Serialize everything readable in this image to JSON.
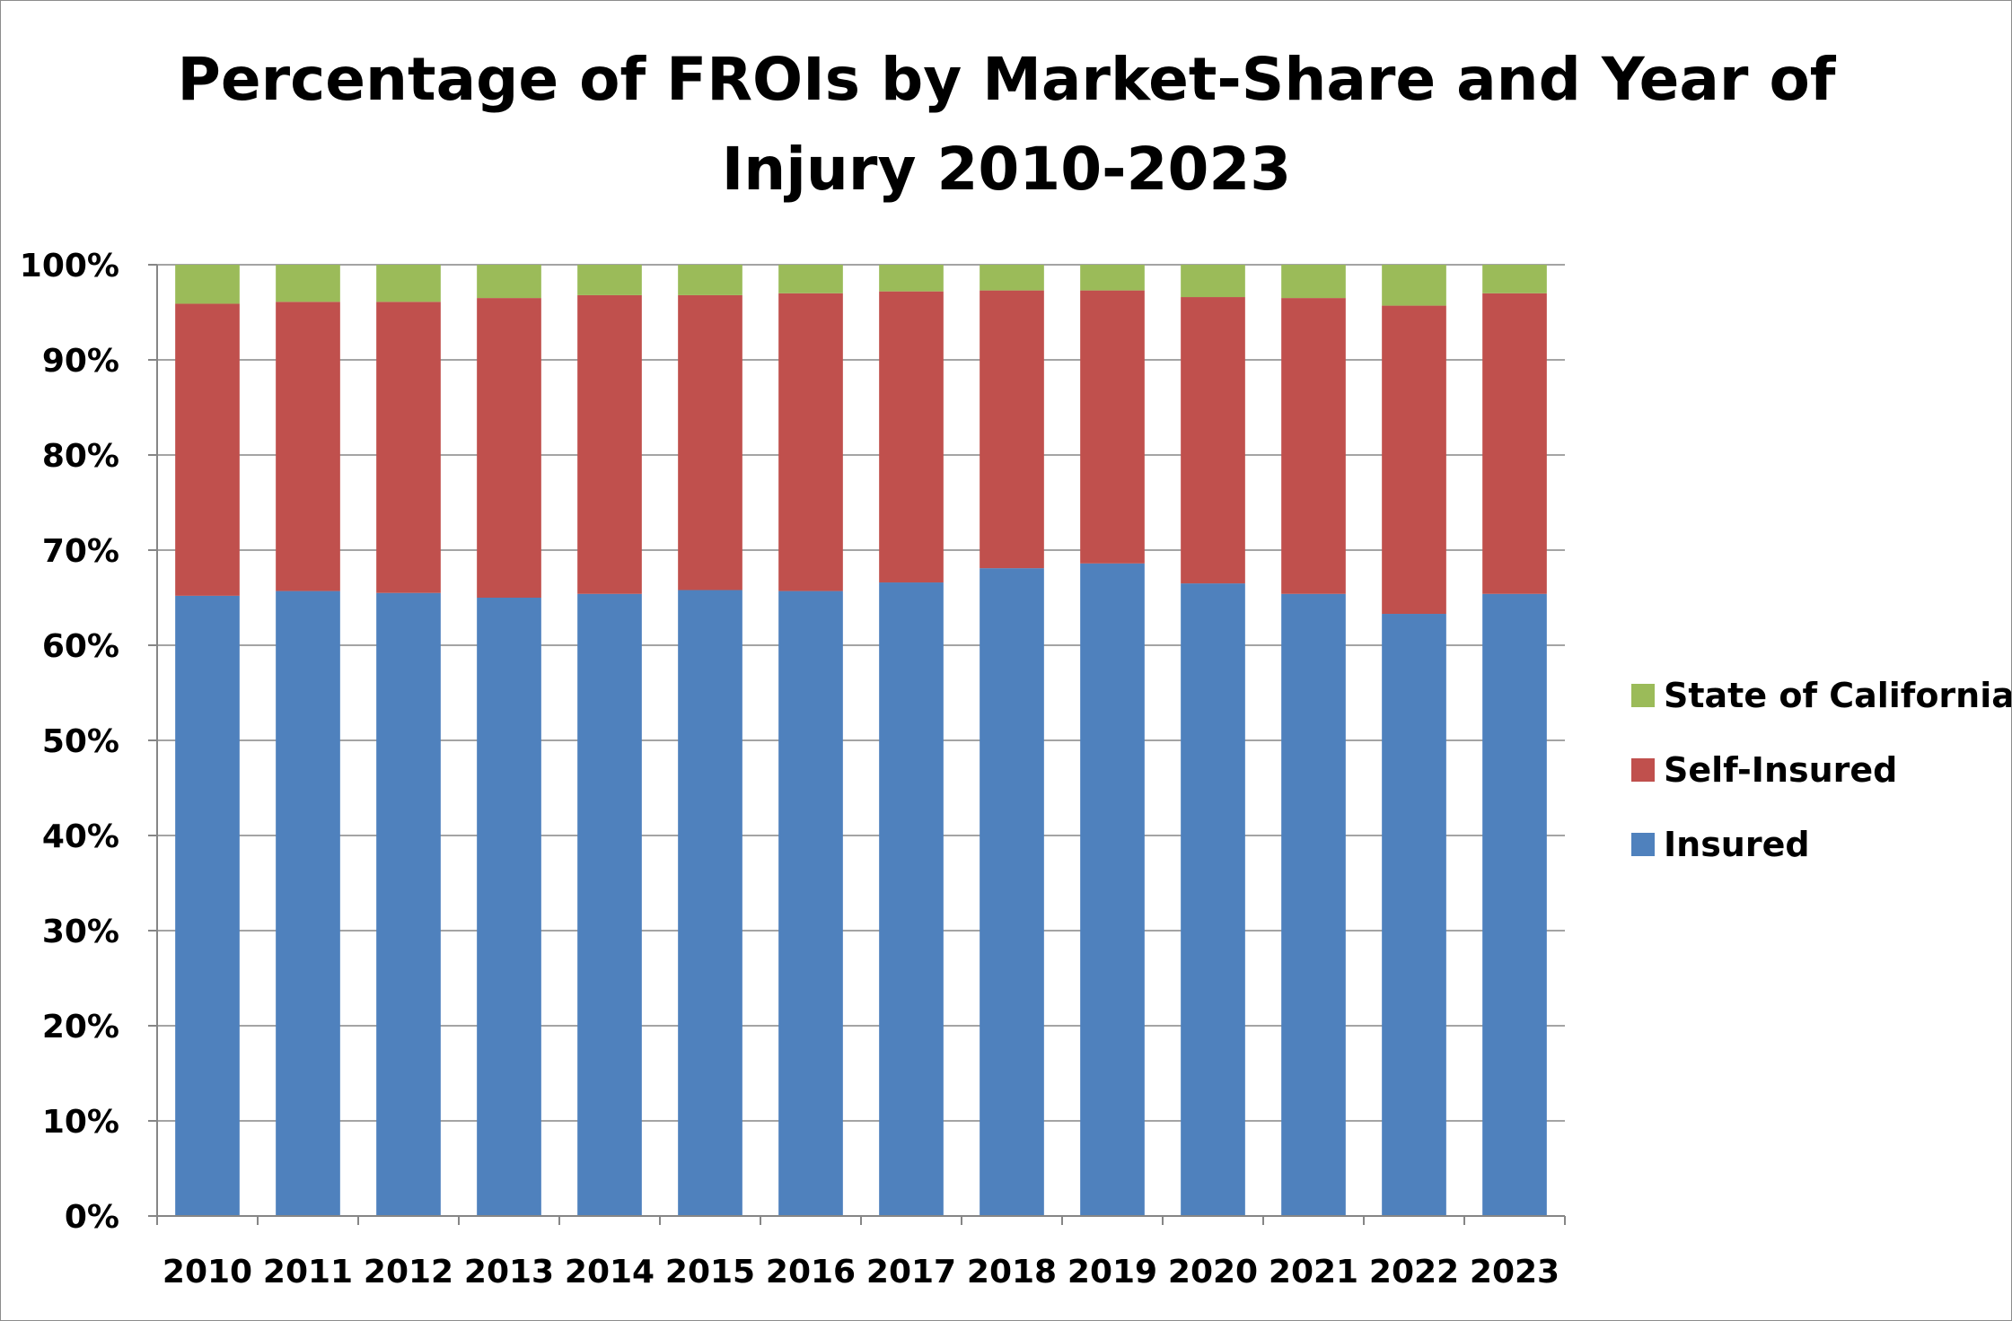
{
  "chart_data": {
    "type": "bar",
    "stacked": true,
    "title_lines": [
      "Percentage of FROIs by Market-Share and Year of",
      "Injury 2010-2023"
    ],
    "xlabel": "",
    "ylabel": "",
    "categories": [
      "2010",
      "2011",
      "2012",
      "2013",
      "2014",
      "2015",
      "2016",
      "2017",
      "2018",
      "2019",
      "2020",
      "2021",
      "2022",
      "2023"
    ],
    "ylim": [
      0,
      100
    ],
    "yticks": [
      0,
      10,
      20,
      30,
      40,
      50,
      60,
      70,
      80,
      90,
      100
    ],
    "ytick_labels": [
      "0%",
      "10%",
      "20%",
      "30%",
      "40%",
      "50%",
      "60%",
      "70%",
      "80%",
      "90%",
      "100%"
    ],
    "grid": true,
    "legend_position": "right",
    "series": [
      {
        "name": "Insured",
        "color": "#4F81BD",
        "values": [
          65.2,
          65.7,
          65.5,
          65.0,
          65.4,
          65.8,
          65.7,
          66.6,
          68.1,
          68.6,
          66.5,
          65.4,
          63.3,
          65.4
        ]
      },
      {
        "name": "Self-Insured",
        "color": "#C0504D",
        "values": [
          30.7,
          30.4,
          30.6,
          31.5,
          31.4,
          31.0,
          31.3,
          30.6,
          29.2,
          28.7,
          30.1,
          31.1,
          32.4,
          31.6
        ]
      },
      {
        "name": "State of California",
        "color": "#9BBB59",
        "values": [
          4.1,
          3.9,
          3.9,
          3.5,
          3.2,
          3.2,
          3.0,
          2.8,
          2.7,
          2.7,
          3.4,
          3.5,
          4.3,
          3.0
        ]
      }
    ],
    "legend_order": [
      "State of California",
      "Self-Insured",
      "Insured"
    ]
  }
}
